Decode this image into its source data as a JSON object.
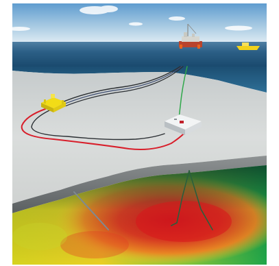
{
  "image": {
    "description_visible_text": "",
    "colors": {
      "sky_top": "#6fa8d6",
      "sky_bottom": "#cfe3ef",
      "sea": "#1f4f73",
      "seabed": "#d9dcd9",
      "flowline_red": "#d81e2a",
      "flowline_black": "#2b2f33",
      "umbilical_green": "#2fa84a",
      "manifold_yellow": "#f2dc17",
      "reservoir_hot": "#e3262a",
      "reservoir_mid": "#f1d12a",
      "reservoir_cool": "#2fb34a"
    },
    "icons": [
      "offshore-platform-icon",
      "supply-vessel-icon",
      "subsea-manifold-icon",
      "subsea-template-icon"
    ]
  }
}
